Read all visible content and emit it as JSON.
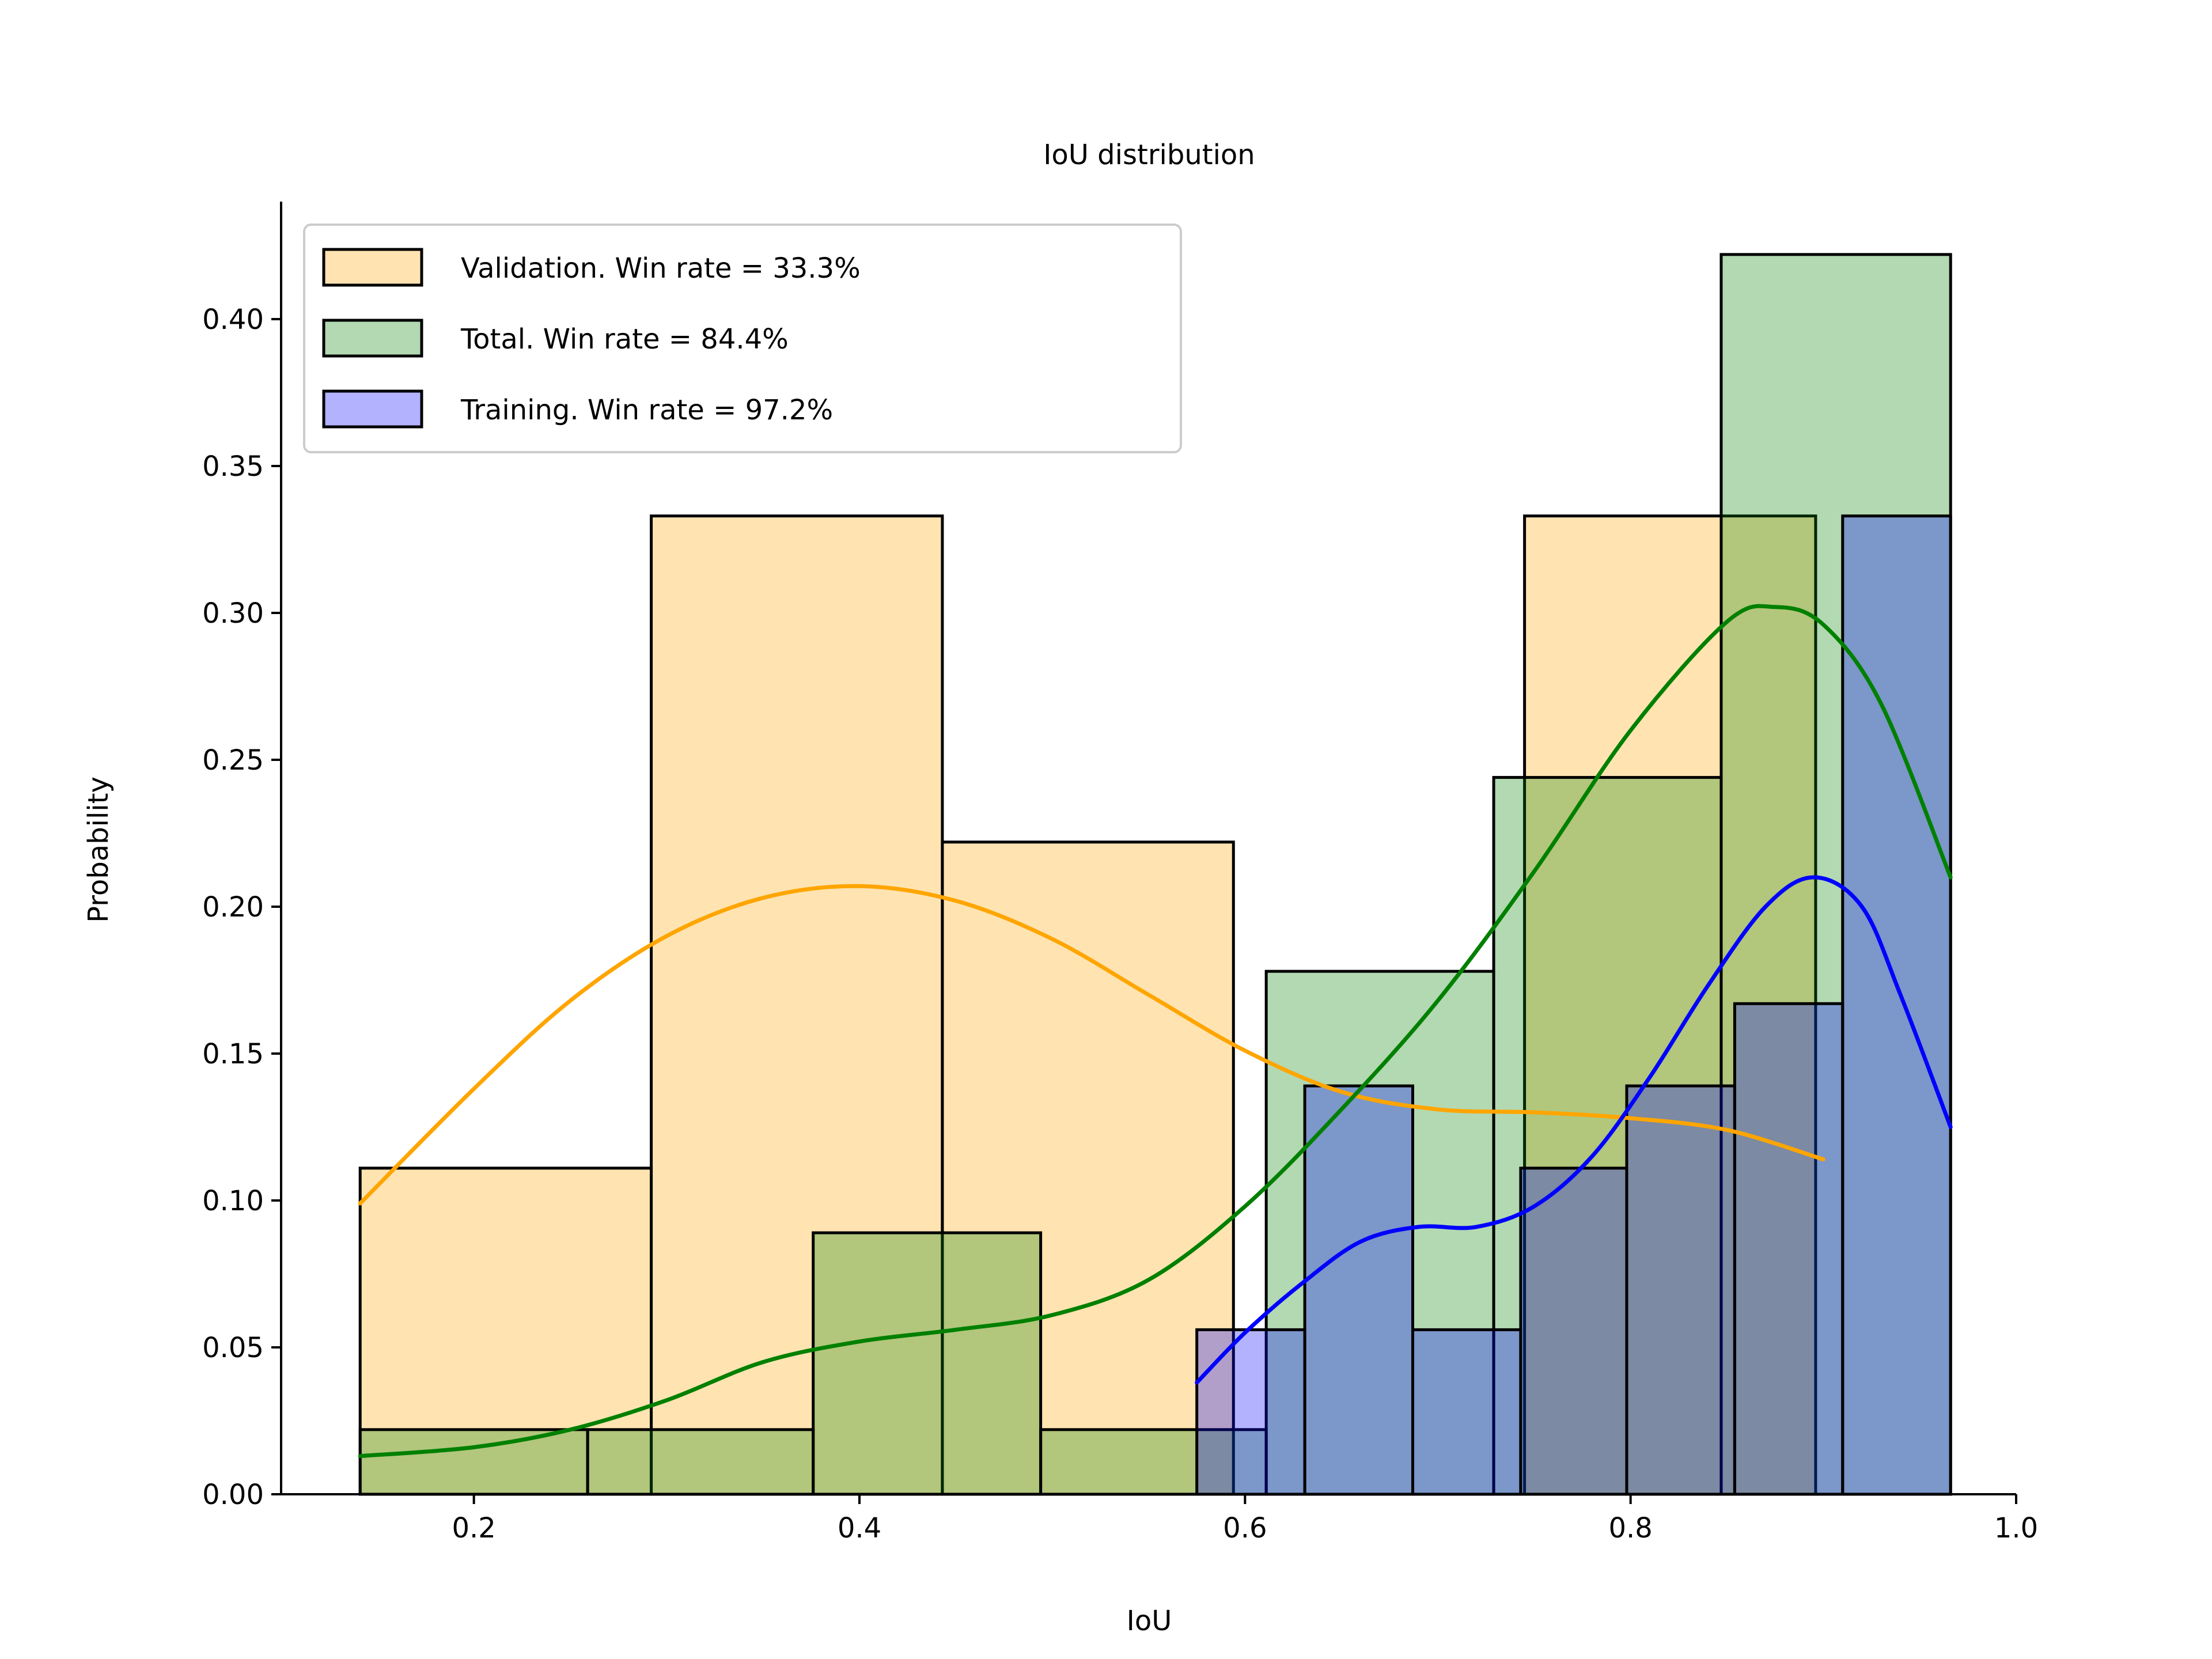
{
  "chart_data": {
    "type": "histogram",
    "title": "IoU distribution",
    "xlabel": "IoU",
    "ylabel": "Probability",
    "xlim": [
      0.1,
      1.0
    ],
    "ylim": [
      0,
      0.44
    ],
    "xticks": [
      "0.2",
      "0.4",
      "0.6",
      "0.8",
      "1.0"
    ],
    "yticks": [
      "0.00",
      "0.05",
      "0.10",
      "0.15",
      "0.20",
      "0.25",
      "0.30",
      "0.35",
      "0.40"
    ],
    "legend_position": "upper-left",
    "series": [
      {
        "name": "Validation. Win rate = 33.3%",
        "color": "#FFA500",
        "bins": [
          [
            0.141,
            0.292,
            0.111
          ],
          [
            0.292,
            0.443,
            0.333
          ],
          [
            0.443,
            0.594,
            0.222
          ],
          [
            0.745,
            0.896,
            0.333
          ]
        ],
        "kde": [
          [
            0.141,
            0.099
          ],
          [
            0.2,
            0.138
          ],
          [
            0.25,
            0.168
          ],
          [
            0.3,
            0.19
          ],
          [
            0.35,
            0.203
          ],
          [
            0.4,
            0.207
          ],
          [
            0.45,
            0.202
          ],
          [
            0.5,
            0.189
          ],
          [
            0.55,
            0.17
          ],
          [
            0.6,
            0.151
          ],
          [
            0.65,
            0.137
          ],
          [
            0.7,
            0.131
          ],
          [
            0.75,
            0.13
          ],
          [
            0.8,
            0.128
          ],
          [
            0.85,
            0.124
          ],
          [
            0.9,
            0.114
          ]
        ]
      },
      {
        "name": "Total. Win rate = 84.4%",
        "color": "#008000",
        "bins": [
          [
            0.141,
            0.259,
            0.022
          ],
          [
            0.259,
            0.376,
            0.022
          ],
          [
            0.376,
            0.494,
            0.089
          ],
          [
            0.494,
            0.611,
            0.022
          ],
          [
            0.611,
            0.729,
            0.178
          ],
          [
            0.729,
            0.847,
            0.244
          ],
          [
            0.847,
            0.966,
            0.422
          ]
        ],
        "kde": [
          [
            0.141,
            0.013
          ],
          [
            0.2,
            0.016
          ],
          [
            0.25,
            0.022
          ],
          [
            0.3,
            0.032
          ],
          [
            0.35,
            0.045
          ],
          [
            0.4,
            0.052
          ],
          [
            0.45,
            0.056
          ],
          [
            0.5,
            0.061
          ],
          [
            0.55,
            0.073
          ],
          [
            0.6,
            0.098
          ],
          [
            0.65,
            0.131
          ],
          [
            0.7,
            0.168
          ],
          [
            0.75,
            0.212
          ],
          [
            0.8,
            0.26
          ],
          [
            0.85,
            0.297
          ],
          [
            0.875,
            0.302
          ],
          [
            0.9,
            0.296
          ],
          [
            0.93,
            0.269
          ],
          [
            0.966,
            0.21
          ]
        ]
      },
      {
        "name": "Training. Win rate = 97.2%",
        "color": "#0000FF",
        "bins": [
          [
            0.575,
            0.631,
            0.056
          ],
          [
            0.631,
            0.687,
            0.139
          ],
          [
            0.687,
            0.743,
            0.056
          ],
          [
            0.743,
            0.798,
            0.111
          ],
          [
            0.798,
            0.854,
            0.139
          ],
          [
            0.854,
            0.91,
            0.167
          ],
          [
            0.91,
            0.966,
            0.333
          ]
        ],
        "kde": [
          [
            0.575,
            0.038
          ],
          [
            0.6,
            0.055
          ],
          [
            0.63,
            0.072
          ],
          [
            0.66,
            0.086
          ],
          [
            0.69,
            0.091
          ],
          [
            0.72,
            0.091
          ],
          [
            0.75,
            0.098
          ],
          [
            0.78,
            0.115
          ],
          [
            0.81,
            0.142
          ],
          [
            0.84,
            0.173
          ],
          [
            0.87,
            0.2
          ],
          [
            0.895,
            0.21
          ],
          [
            0.92,
            0.2
          ],
          [
            0.94,
            0.17
          ],
          [
            0.966,
            0.125
          ]
        ]
      }
    ]
  }
}
